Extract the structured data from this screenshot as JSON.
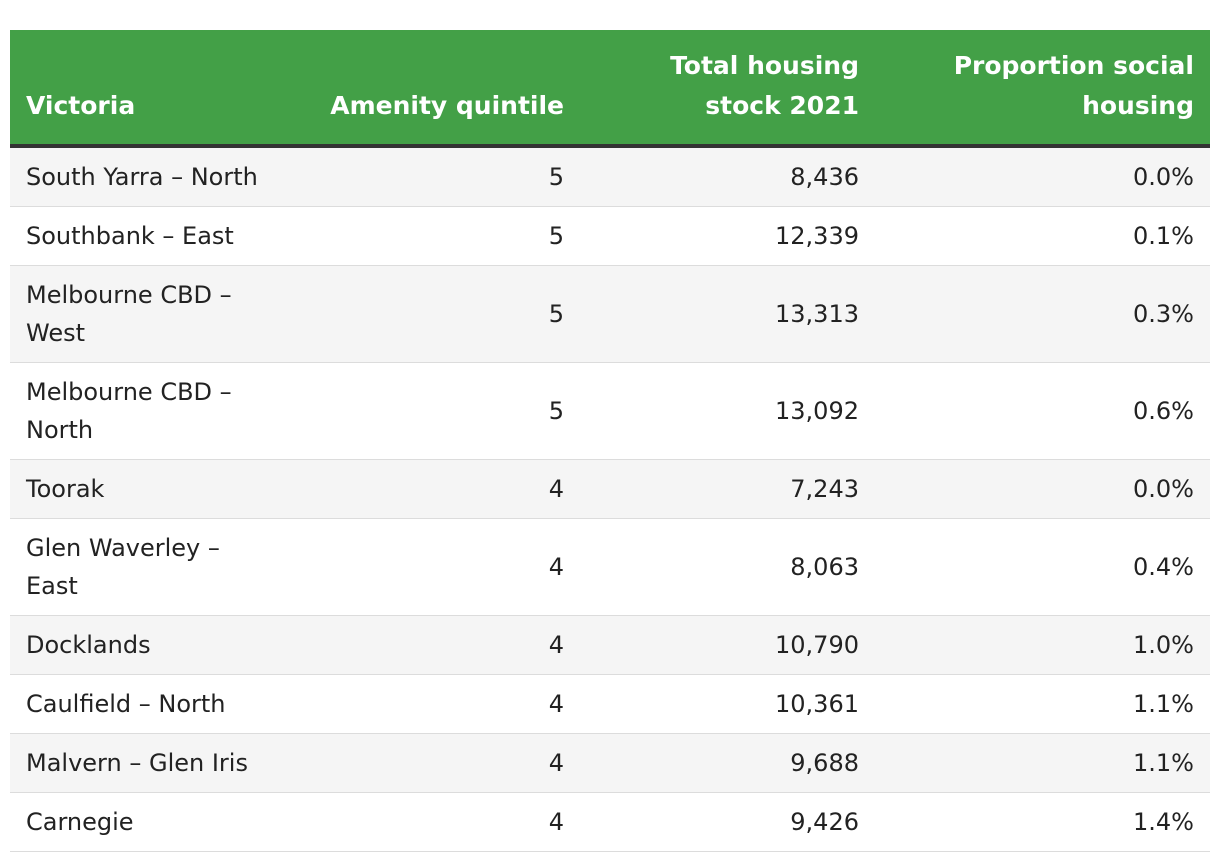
{
  "table": {
    "headers": [
      "Victoria",
      "Amenity quintile",
      "Total housing stock 2021",
      "Proportion social housing"
    ],
    "rows": [
      [
        "South Yarra – North",
        "5",
        "8,436",
        "0.0%"
      ],
      [
        "Southbank – East",
        "5",
        "12,339",
        "0.1%"
      ],
      [
        "Melbourne CBD – West",
        "5",
        "13,313",
        "0.3%"
      ],
      [
        "Melbourne CBD – North",
        "5",
        "13,092",
        "0.6%"
      ],
      [
        "Toorak",
        "4",
        "7,243",
        "0.0%"
      ],
      [
        "Glen Waverley – East",
        "4",
        "8,063",
        "0.4%"
      ],
      [
        "Docklands",
        "4",
        "10,790",
        "1.0%"
      ],
      [
        "Caulfield – North",
        "4",
        "10,361",
        "1.1%"
      ],
      [
        "Malvern – Glen Iris",
        "4",
        "9,688",
        "1.1%"
      ],
      [
        "Carnegie",
        "4",
        "9,426",
        "1.4%"
      ]
    ]
  },
  "colors": {
    "header_background": "#43a047",
    "header_text": "#ffffff",
    "header_rule": "#333333",
    "stripe": "#f5f5f5"
  }
}
